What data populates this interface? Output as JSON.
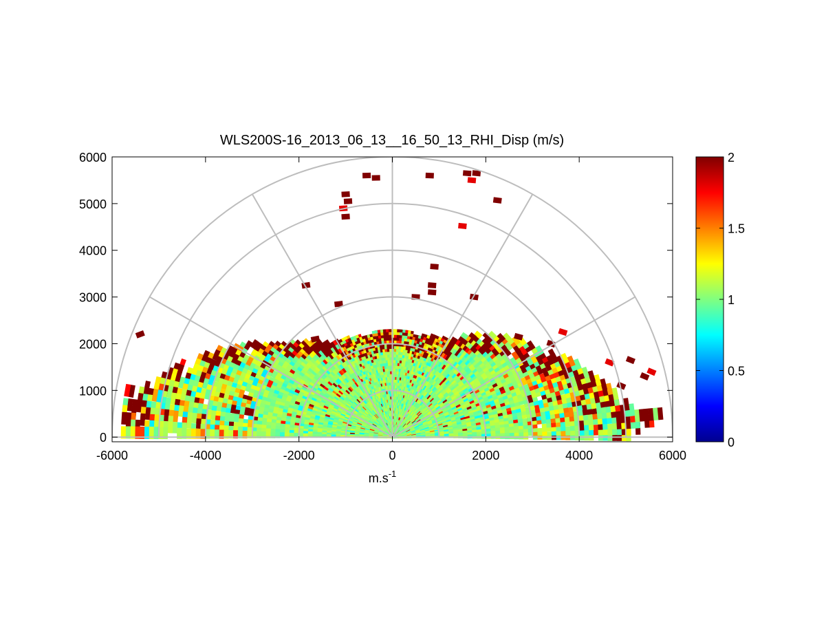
{
  "chart_data": {
    "type": "heatmap",
    "subtype": "polar-rhi",
    "title": "WLS200S-16_2013_06_13__16_50_13_RHI_Disp (m/s)",
    "xlabel": "m.s",
    "xlabel_superscript": "-1",
    "ylabel": "",
    "xlim": [
      -6000,
      6000
    ],
    "ylim": [
      -100,
      6000
    ],
    "xticks": [
      -6000,
      -4000,
      -2000,
      0,
      2000,
      4000,
      6000
    ],
    "yticks": [
      0,
      1000,
      2000,
      3000,
      4000,
      5000,
      6000
    ],
    "range_rings": [
      1000,
      2000,
      3000,
      4000,
      5000,
      6000
    ],
    "radial_spokes_deg": [
      0,
      30,
      60,
      90,
      120,
      150,
      180
    ],
    "colorbar": {
      "colormap": "jet",
      "clim": [
        0,
        2
      ],
      "ticks": [
        0,
        0.5,
        1,
        1.5,
        2
      ]
    },
    "dense_region": {
      "description": "low-level scans, values mostly near 1",
      "max_range_m": 5800,
      "elevation_deg": [
        0,
        180
      ]
    },
    "sparse_returns": [
      {
        "x": -5400,
        "y": 2200,
        "value": 2.0
      },
      {
        "x": -1000,
        "y": 5200,
        "value": 2.0
      },
      {
        "x": -1050,
        "y": 4900,
        "value": 1.8
      },
      {
        "x": -950,
        "y": 5050,
        "value": 2.0
      },
      {
        "x": -1000,
        "y": 4720,
        "value": 2.0
      },
      {
        "x": -550,
        "y": 5600,
        "value": 2.0
      },
      {
        "x": -350,
        "y": 5550,
        "value": 2.0
      },
      {
        "x": 800,
        "y": 5600,
        "value": 2.0
      },
      {
        "x": 1600,
        "y": 5650,
        "value": 2.0
      },
      {
        "x": 1800,
        "y": 5650,
        "value": 2.0
      },
      {
        "x": 1700,
        "y": 5500,
        "value": 1.8
      },
      {
        "x": 2250,
        "y": 5070,
        "value": 2.0
      },
      {
        "x": 1500,
        "y": 4520,
        "value": 1.8
      },
      {
        "x": 900,
        "y": 3650,
        "value": 2.0
      },
      {
        "x": 850,
        "y": 3250,
        "value": 2.0
      },
      {
        "x": 850,
        "y": 3100,
        "value": 2.0
      },
      {
        "x": 500,
        "y": 3000,
        "value": 2.0
      },
      {
        "x": 1750,
        "y": 3000,
        "value": 2.0
      },
      {
        "x": -1850,
        "y": 3250,
        "value": 2.0
      },
      {
        "x": -1150,
        "y": 2850,
        "value": 2.0
      },
      {
        "x": -1650,
        "y": 2100,
        "value": 2.0
      },
      {
        "x": 3650,
        "y": 2250,
        "value": 1.8
      },
      {
        "x": 3400,
        "y": 2000,
        "value": 2.0
      },
      {
        "x": 2700,
        "y": 2150,
        "value": 2.0
      },
      {
        "x": 5550,
        "y": 1400,
        "value": 1.8
      },
      {
        "x": 5100,
        "y": 1650,
        "value": 2.0
      },
      {
        "x": 4900,
        "y": 1100,
        "value": 2.0
      },
      {
        "x": 4650,
        "y": 1600,
        "value": 1.8
      },
      {
        "x": 5400,
        "y": 1300,
        "value": 2.0
      }
    ]
  }
}
